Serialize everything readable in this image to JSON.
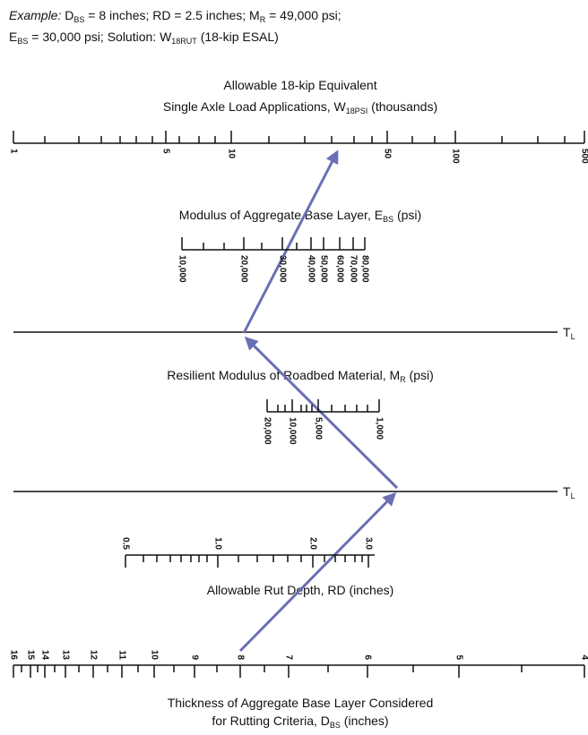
{
  "example": {
    "label": "Example:",
    "line1": [
      "D",
      "BS",
      " = 8 inches; RD = 2.5 inches; M",
      "R",
      " = 49,000 psi;"
    ],
    "line2": [
      "E",
      "BS",
      " = 30,000 psi; Solution: W",
      "18RUT",
      " (18-kip ESAL)"
    ]
  },
  "scales": [
    {
      "title": [
        "Allowable 18-kip Equivalent"
      ],
      "title2": [
        "Single Axle Load Applications, W",
        "18PSI",
        " (thousands)"
      ],
      "tick_labels": [
        "1",
        "5",
        "10",
        "50",
        "100",
        "500"
      ]
    },
    {
      "title": [
        "Modulus of Aggregate Base Layer, E",
        "BS",
        " (psi)"
      ],
      "tick_labels": [
        "10,000",
        "20,000",
        "30,000",
        "40,000",
        "50,000",
        "60,000",
        "70,000",
        "80,000"
      ]
    },
    {
      "title": [
        "Resilient Modulus of Roadbed Material, M",
        "R",
        " (psi)"
      ],
      "tick_labels": [
        "20,000",
        "10,000",
        "5,000",
        "1,000"
      ]
    },
    {
      "title": [
        "Allowable Rut Depth, RD (inches)"
      ],
      "tick_labels": [
        "0.5",
        "1.0",
        "2.0",
        "3.0"
      ]
    },
    {
      "title": [
        "Thickness of Aggregate Base Layer Considered"
      ],
      "title2": [
        "for Rutting Criteria, D",
        "BS",
        " (inches)"
      ],
      "tick_labels": [
        "16",
        "15",
        "14",
        "13",
        "12",
        "11",
        "10",
        "9",
        "8",
        "7",
        "6",
        "5",
        "4"
      ]
    }
  ],
  "turning_line": [
    "T",
    "L"
  ]
}
